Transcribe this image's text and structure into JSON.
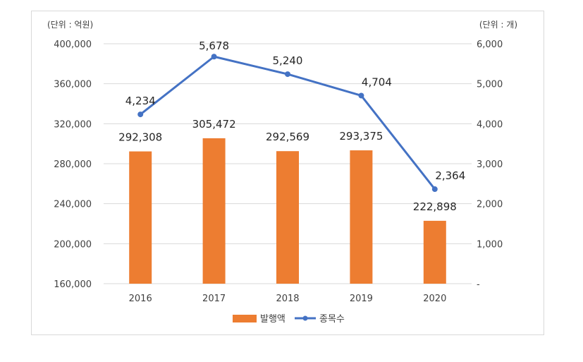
{
  "chart_data": {
    "type": "bar+line",
    "categories": [
      "2016",
      "2017",
      "2018",
      "2019",
      "2020"
    ],
    "series": [
      {
        "name": "발행액",
        "type": "bar",
        "axis": "left",
        "values": [
          292308,
          305472,
          292569,
          293375,
          222898
        ],
        "labels": [
          "292,308",
          "305,472",
          "292,569",
          "293,375",
          "222,898"
        ]
      },
      {
        "name": "종목수",
        "type": "line",
        "axis": "right",
        "values": [
          4234,
          5678,
          5240,
          4704,
          2364
        ],
        "labels": [
          "4,234",
          "5,678",
          "5,240",
          "4,704",
          "2,364"
        ]
      }
    ],
    "left_axis": {
      "unit": "(단위 : 억원)",
      "ylim": [
        160000,
        400000
      ],
      "ticks": [
        "400,000",
        "360,000",
        "320,000",
        "280,000",
        "240,000",
        "200,000",
        "160,000"
      ]
    },
    "right_axis": {
      "unit": "(단위 : 개)",
      "ylim": [
        0,
        6000
      ],
      "ticks": [
        "6,000",
        "5,000",
        "4,000",
        "3,000",
        "2,000",
        "1,000",
        "-"
      ]
    },
    "legend": [
      "발행액",
      "종목수"
    ],
    "legend_position": "bottom",
    "grid": true
  },
  "colors": {
    "bar": "#ed7d31",
    "line": "#4472c4",
    "grid": "#d9d9d9"
  }
}
